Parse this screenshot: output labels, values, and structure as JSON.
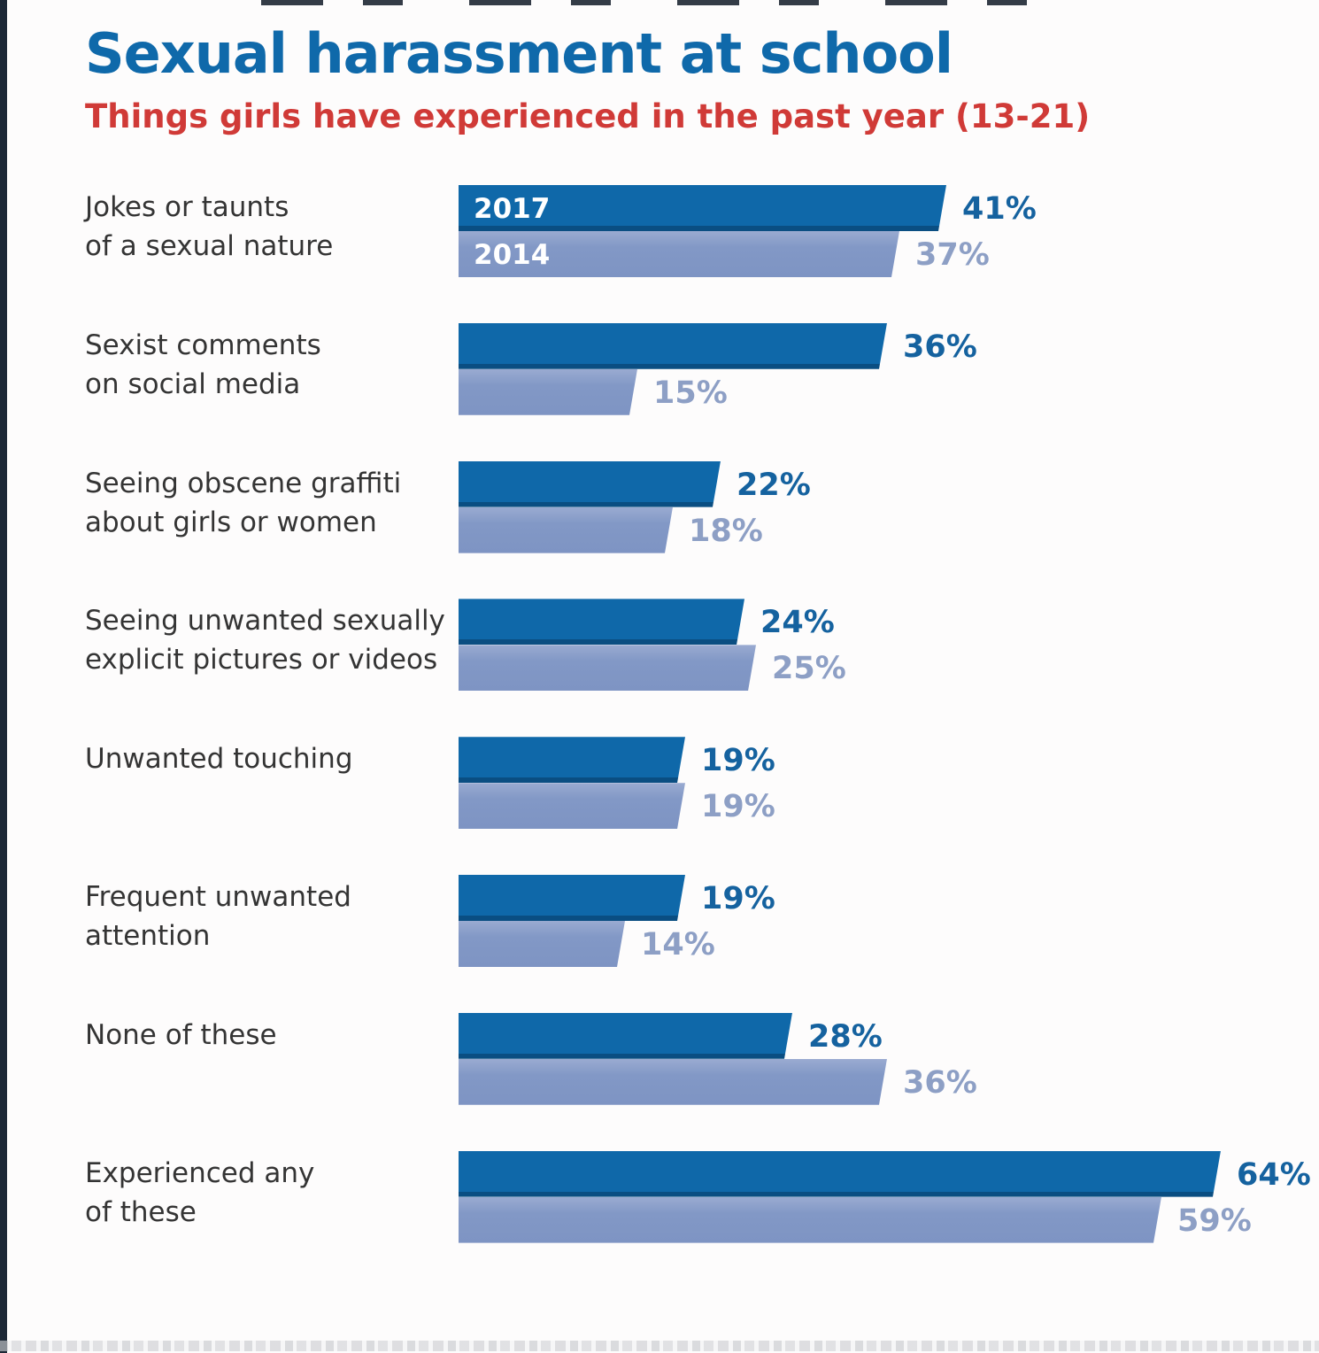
{
  "page": {
    "title": "Sexual harassment at school",
    "subtitle": "Things girls have experienced in the past year (13-21)"
  },
  "chart_data": {
    "type": "bar",
    "orientation": "horizontal",
    "title": "Sexual harassment at school",
    "subtitle": "Things girls have experienced in the past year (13-21)",
    "value_suffix": "%",
    "xlim": [
      0,
      74
    ],
    "grid": false,
    "legend": "inline labels inside first pair of bars",
    "series_names": [
      "2017",
      "2014"
    ],
    "categories": [
      "Jokes or taunts of a sexual nature",
      "Sexist comments on social media",
      "Seeing obscene graffiti about girls or women",
      "Seeing unwanted sexually explicit pictures or videos",
      "Unwanted touching",
      "Frequent unwanted attention",
      "None of these",
      "Experienced any of these"
    ],
    "category_lines": [
      [
        "Jokes or taunts",
        "of a sexual nature"
      ],
      [
        "Sexist comments",
        "on social media"
      ],
      [
        "Seeing obscene graffiti",
        "about girls or women"
      ],
      [
        "Seeing unwanted sexually",
        "explicit pictures or videos"
      ],
      [
        "Unwanted touching"
      ],
      [
        "Frequent unwanted",
        "attention"
      ],
      [
        "None of these"
      ],
      [
        "Experienced any",
        "of these"
      ]
    ],
    "series": [
      {
        "name": "2017",
        "color": "#0f68a9",
        "values": [
          41,
          36,
          22,
          24,
          19,
          19,
          28,
          64
        ]
      },
      {
        "name": "2014",
        "color": "#8298c6",
        "values": [
          37,
          15,
          18,
          25,
          19,
          14,
          36,
          59
        ]
      }
    ],
    "colors": {
      "title": "#0f69aa",
      "subtitle": "#d03a37",
      "category_text": "#343434",
      "value_2017": "#15629f",
      "value_2014": "#8d9fc5",
      "bar_2017": "#0f68a9",
      "bar_2017_bottom_edge": "#0a4e82",
      "bar_2014": "#8298c6",
      "inline_year_text": "#ffffff",
      "left_edge_strip": "#1c2836"
    }
  }
}
